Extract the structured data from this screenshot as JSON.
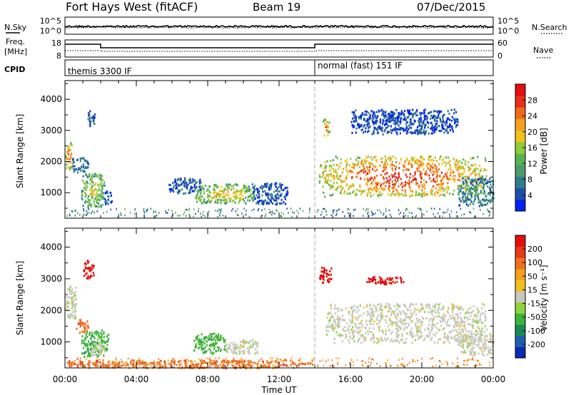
{
  "header": {
    "station": "Fort Hays West (fitACF)",
    "beam": "Beam 19",
    "date": "07/Dec/2015"
  },
  "noise_panel": {
    "left_label": "N.Sky",
    "left_ticks": [
      "10^5",
      "10^0"
    ],
    "right_label": "N.Search",
    "right_ticks": [
      "10^5",
      "10^0"
    ]
  },
  "freq_panel": {
    "left_label_1": "Freq.",
    "left_label_2": "[MHz]",
    "left_ticks": [
      "18",
      "8"
    ],
    "right_label": "Nave",
    "right_ticks": [
      "60",
      "0"
    ]
  },
  "cpid_panel": {
    "label": "CPID",
    "modes": [
      {
        "text": "themis 3300 IF",
        "start_hour": 0
      },
      {
        "text": "normal (fast) 151 IF",
        "start_hour": 14
      }
    ]
  },
  "chart_data": [
    {
      "type": "heatmap",
      "title": "",
      "quantity": "Power",
      "xlabel": "",
      "ylabel": "Slant Range [km]",
      "xlim": [
        0,
        24
      ],
      "ylim": [
        180,
        4600
      ],
      "yticks": [
        "1000",
        "2000",
        "3000",
        "4000"
      ],
      "colorbar": {
        "label": "Power [dB]",
        "ticks": [
          "4",
          "8",
          "12",
          "16",
          "20",
          "24",
          "28"
        ],
        "colors": [
          "#0022ee",
          "#1c4fa8",
          "#2f7d8c",
          "#4e9a6a",
          "#58b452",
          "#8fcc3b",
          "#f2c21a",
          "#f5a020",
          "#f06a1a",
          "#e63019",
          "#e40f10"
        ]
      },
      "regions": [
        {
          "t": [
            0.0,
            0.4
          ],
          "r": [
            1750,
            2650
          ],
          "level": 0.8
        },
        {
          "t": [
            0.4,
            1.3
          ],
          "r": [
            1650,
            2150
          ],
          "level": 0.25
        },
        {
          "t": [
            0.9,
            2.2
          ],
          "r": [
            550,
            1650
          ],
          "level": 0.55
        },
        {
          "t": [
            1.2,
            1.7
          ],
          "r": [
            3150,
            3650
          ],
          "level": 0.15
        },
        {
          "t": [
            2.2,
            2.6
          ],
          "r": [
            600,
            1100
          ],
          "level": 0.15
        },
        {
          "t": [
            5.8,
            7.6
          ],
          "r": [
            1000,
            1500
          ],
          "level": 0.12
        },
        {
          "t": [
            7.2,
            10.6
          ],
          "r": [
            680,
            1300
          ],
          "level": 0.6
        },
        {
          "t": [
            10.5,
            12.5
          ],
          "r": [
            650,
            1350
          ],
          "level": 0.15
        },
        {
          "t": [
            14.4,
            14.8
          ],
          "r": [
            2800,
            3400
          ],
          "level": 0.75
        },
        {
          "t": [
            14.2,
            23.6
          ],
          "r": [
            900,
            2200
          ],
          "level": 0.9
        },
        {
          "t": [
            16.0,
            22.0
          ],
          "r": [
            2900,
            3700
          ],
          "level": 0.1
        },
        {
          "t": [
            22.0,
            24.0
          ],
          "r": [
            600,
            1500
          ],
          "level": 0.3
        }
      ]
    },
    {
      "type": "heatmap",
      "title": "",
      "quantity": "Velocity",
      "xlabel": "Time UT",
      "ylabel": "Slant Range [km]",
      "xlim": [
        0,
        24
      ],
      "ylim": [
        180,
        4600
      ],
      "xticks": [
        "00:00",
        "04:00",
        "08:00",
        "12:00",
        "16:00",
        "20:00",
        "00:00"
      ],
      "yticks": [
        "1000",
        "2000",
        "3000",
        "4000"
      ],
      "colorbar": {
        "label": "Velocity [m s⁻¹]",
        "ticks": [
          "200",
          "100",
          "50",
          "15",
          "-15",
          "-50",
          "-100",
          "-200"
        ],
        "colors": [
          "#0a2bb0",
          "#1f5fb0",
          "#1d8a50",
          "#3cb43c",
          "#8ed43a",
          "#c8c8c0",
          "#f0c020",
          "#f5a020",
          "#f07020",
          "#e63a19",
          "#e01010"
        ]
      },
      "regions": [
        {
          "t": [
            0.0,
            0.6
          ],
          "r": [
            1750,
            2800
          ],
          "level": "gray"
        },
        {
          "t": [
            0.6,
            1.3
          ],
          "r": [
            1300,
            1750
          ],
          "level": "orange"
        },
        {
          "t": [
            0.9,
            2.4
          ],
          "r": [
            550,
            1400
          ],
          "level": "green"
        },
        {
          "t": [
            1.4,
            2.2
          ],
          "r": [
            600,
            1000
          ],
          "level": "gray"
        },
        {
          "t": [
            1.0,
            1.6
          ],
          "r": [
            3000,
            3600
          ],
          "level": "red"
        },
        {
          "t": [
            7.2,
            9.0
          ],
          "r": [
            650,
            1300
          ],
          "level": "green"
        },
        {
          "t": [
            9.0,
            10.8
          ],
          "r": [
            650,
            1100
          ],
          "level": "gray"
        },
        {
          "t": [
            0.0,
            14.0
          ],
          "r": [
            200,
            450
          ],
          "level": "orange"
        },
        {
          "t": [
            14.2,
            14.9
          ],
          "r": [
            2850,
            3400
          ],
          "level": "red"
        },
        {
          "t": [
            14.6,
            23.6
          ],
          "r": [
            1000,
            2250
          ],
          "level": "gray"
        },
        {
          "t": [
            16.8,
            19.0
          ],
          "r": [
            2850,
            3100
          ],
          "level": "red"
        },
        {
          "t": [
            22.0,
            24.0
          ],
          "r": [
            600,
            1300
          ],
          "level": "gray"
        }
      ]
    }
  ]
}
